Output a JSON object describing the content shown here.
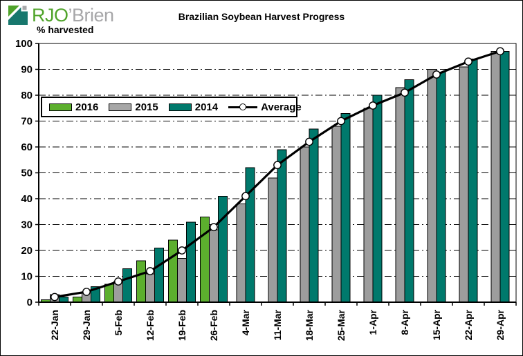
{
  "logo": {
    "text_primary": "RJO",
    "text_secondary": "’Brien",
    "colors": {
      "green": "#4fa32a",
      "teal": "#17776d",
      "gray": "#a7a7a9"
    }
  },
  "title": "Brazilian Soybean Harvest Progress",
  "axis_label": "% harvested",
  "legend": [
    {
      "label": "2016",
      "color": "#5caf2e",
      "type": "swatch"
    },
    {
      "label": "2015",
      "color": "#a6a6a6",
      "type": "swatch"
    },
    {
      "label": "2014",
      "color": "#00796c",
      "type": "swatch"
    },
    {
      "label": "Average",
      "color": "#000000",
      "type": "line-marker"
    }
  ],
  "chart_data": {
    "type": "bar",
    "title": "Brazilian Soybean Harvest Progress",
    "ylabel": "% harvested",
    "xlabel": "",
    "ylim": [
      0,
      100
    ],
    "y_ticks": [
      0,
      10,
      20,
      30,
      40,
      50,
      60,
      70,
      80,
      90,
      100
    ],
    "grid": "horizontal dash-dot",
    "legend_position": "inside top-left",
    "categories": [
      "22-Jan",
      "29-Jan",
      "5-Feb",
      "12-Feb",
      "19-Feb",
      "26-Feb",
      "4-Mar",
      "11-Mar",
      "18-Mar",
      "25-Mar",
      "1-Apr",
      "8-Apr",
      "15-Apr",
      "22-Apr",
      "29-Apr"
    ],
    "series": [
      {
        "name": "2016",
        "type": "bar",
        "color": "#5caf2e",
        "values": [
          1,
          2,
          7,
          16,
          24,
          33,
          null,
          null,
          null,
          null,
          null,
          null,
          null,
          null,
          null
        ]
      },
      {
        "name": "2015",
        "type": "bar",
        "color": "#9d9d9d",
        "values": [
          3,
          4,
          8,
          11,
          17,
          28,
          38,
          48,
          60,
          68,
          75,
          83,
          90,
          91,
          97
        ]
      },
      {
        "name": "2014",
        "type": "bar",
        "color": "#00796c",
        "values": [
          2,
          6,
          13,
          21,
          31,
          41,
          52,
          59,
          67,
          73,
          80,
          86,
          89,
          94,
          97
        ]
      }
    ],
    "line_series": {
      "name": "Average",
      "type": "line",
      "color": "#000000",
      "marker": "open-circle",
      "values": [
        2,
        4,
        8,
        12,
        20,
        29,
        41,
        53,
        62,
        70,
        76,
        81,
        88,
        93,
        97
      ]
    }
  }
}
